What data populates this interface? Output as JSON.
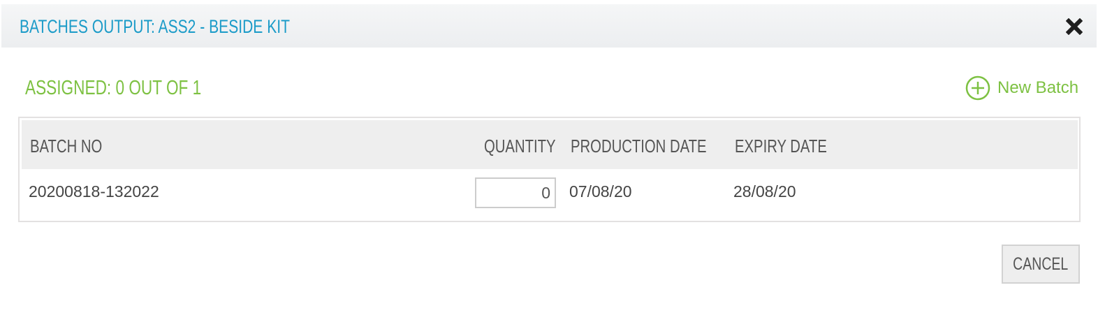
{
  "dialog": {
    "title": "BATCHES OUTPUT: ASS2 - BESIDE KIT",
    "close_icon": "close-x-icon"
  },
  "assigned": "ASSIGNED: 0 OUT OF 1",
  "new_batch": {
    "label": "New Batch",
    "icon": "plus-circle-icon"
  },
  "table": {
    "headers": [
      "BATCH NO",
      "QUANTITY",
      "PRODUCTION DATE",
      "EXPIRY DATE"
    ],
    "rows": [
      {
        "batch_no": "20200818-132022",
        "quantity": "0",
        "production_date": "07/08/20",
        "expiry_date": "28/08/20"
      }
    ]
  },
  "cancel_label": "CANCEL",
  "colors": {
    "title": "#1b9bc8",
    "accent_green": "#7dc142"
  }
}
